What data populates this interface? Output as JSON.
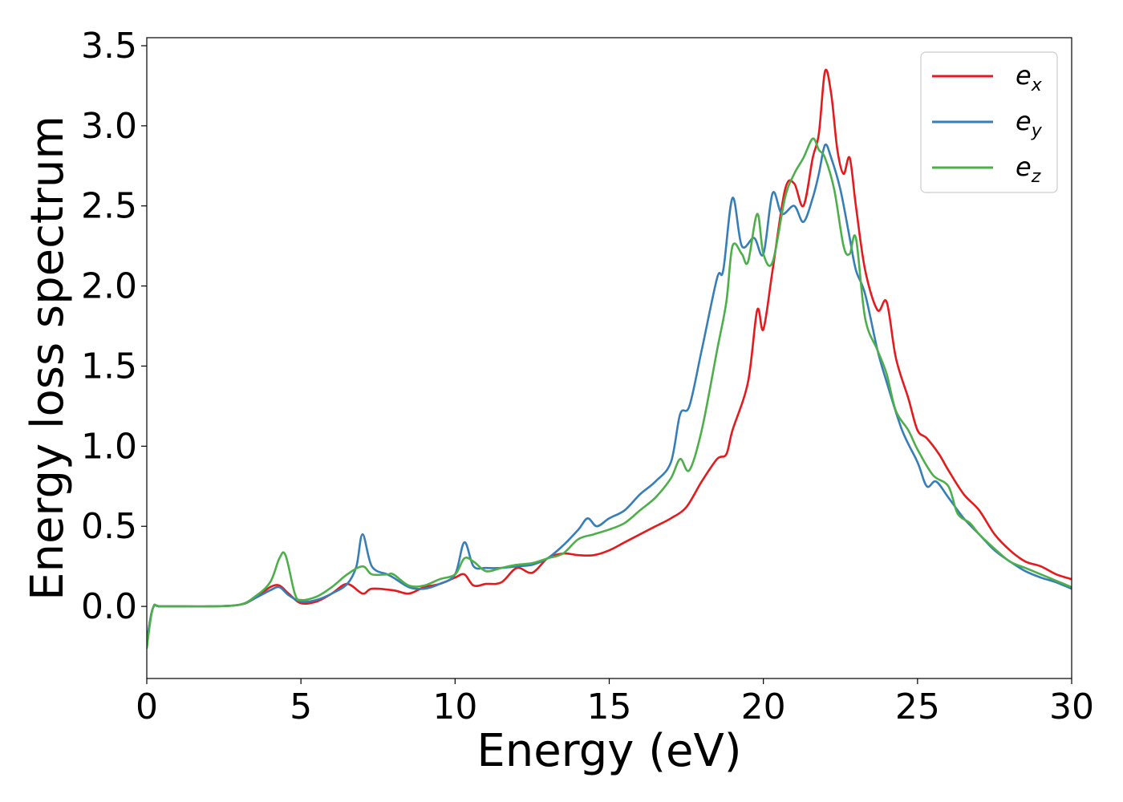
{
  "chart_data": {
    "type": "line",
    "title": "",
    "xlabel": "Energy (eV)",
    "ylabel": "Energy loss spectrum",
    "xlim": [
      0,
      30
    ],
    "ylim": [
      -0.45,
      3.55
    ],
    "xticks": [
      0,
      5,
      10,
      15,
      20,
      25,
      30
    ],
    "xtick_labels": [
      "0",
      "5",
      "10",
      "15",
      "20",
      "25",
      "30"
    ],
    "yticks": [
      0.0,
      0.5,
      1.0,
      1.5,
      2.0,
      2.5,
      3.0,
      3.5
    ],
    "ytick_labels": [
      "0.0",
      "0.5",
      "1.0",
      "1.5",
      "2.0",
      "2.5",
      "3.0",
      "3.5"
    ],
    "grid": false,
    "legend_position": "top-right",
    "series": [
      {
        "name": "e",
        "subscript": "x",
        "color": "#e41a1c",
        "points": [
          [
            0,
            -0.22
          ],
          [
            0.2,
            -0.01
          ],
          [
            0.5,
            0.0
          ],
          [
            2,
            0.0
          ],
          [
            3,
            0.01
          ],
          [
            3.5,
            0.05
          ],
          [
            4,
            0.12
          ],
          [
            4.3,
            0.13
          ],
          [
            4.6,
            0.08
          ],
          [
            5,
            0.02
          ],
          [
            5.5,
            0.03
          ],
          [
            6,
            0.08
          ],
          [
            6.5,
            0.14
          ],
          [
            7,
            0.08
          ],
          [
            7.3,
            0.11
          ],
          [
            8,
            0.1
          ],
          [
            8.5,
            0.08
          ],
          [
            9,
            0.12
          ],
          [
            9.5,
            0.14
          ],
          [
            10,
            0.18
          ],
          [
            10.3,
            0.2
          ],
          [
            10.6,
            0.13
          ],
          [
            11,
            0.14
          ],
          [
            11.5,
            0.15
          ],
          [
            12,
            0.24
          ],
          [
            12.5,
            0.21
          ],
          [
            13,
            0.3
          ],
          [
            13.5,
            0.33
          ],
          [
            14,
            0.32
          ],
          [
            14.5,
            0.32
          ],
          [
            15,
            0.35
          ],
          [
            15.5,
            0.4
          ],
          [
            16,
            0.45
          ],
          [
            16.5,
            0.5
          ],
          [
            17,
            0.55
          ],
          [
            17.5,
            0.62
          ],
          [
            18,
            0.78
          ],
          [
            18.5,
            0.92
          ],
          [
            18.8,
            0.95
          ],
          [
            19,
            1.1
          ],
          [
            19.5,
            1.4
          ],
          [
            19.8,
            1.85
          ],
          [
            20,
            1.73
          ],
          [
            20.3,
            2.1
          ],
          [
            20.7,
            2.6
          ],
          [
            21,
            2.64
          ],
          [
            21.3,
            2.5
          ],
          [
            21.6,
            2.8
          ],
          [
            21.8,
            2.95
          ],
          [
            22,
            3.34
          ],
          [
            22.2,
            3.2
          ],
          [
            22.4,
            2.85
          ],
          [
            22.6,
            2.7
          ],
          [
            22.8,
            2.8
          ],
          [
            23,
            2.5
          ],
          [
            23.3,
            2.1
          ],
          [
            23.7,
            1.85
          ],
          [
            24,
            1.9
          ],
          [
            24.3,
            1.55
          ],
          [
            24.7,
            1.3
          ],
          [
            25,
            1.1
          ],
          [
            25.3,
            1.05
          ],
          [
            25.7,
            0.95
          ],
          [
            26,
            0.85
          ],
          [
            26.5,
            0.7
          ],
          [
            27,
            0.6
          ],
          [
            27.5,
            0.45
          ],
          [
            28,
            0.35
          ],
          [
            28.5,
            0.28
          ],
          [
            29,
            0.25
          ],
          [
            29.5,
            0.2
          ],
          [
            30,
            0.17
          ]
        ]
      },
      {
        "name": "e",
        "subscript": "y",
        "color": "#377eb8",
        "points": [
          [
            0,
            -0.22
          ],
          [
            0.2,
            -0.01
          ],
          [
            0.5,
            0.0
          ],
          [
            2,
            0.0
          ],
          [
            3,
            0.01
          ],
          [
            3.5,
            0.05
          ],
          [
            4,
            0.1
          ],
          [
            4.3,
            0.12
          ],
          [
            4.6,
            0.07
          ],
          [
            5,
            0.03
          ],
          [
            5.5,
            0.04
          ],
          [
            6,
            0.08
          ],
          [
            6.5,
            0.14
          ],
          [
            6.8,
            0.25
          ],
          [
            7,
            0.45
          ],
          [
            7.3,
            0.25
          ],
          [
            7.8,
            0.2
          ],
          [
            8,
            0.18
          ],
          [
            8.5,
            0.12
          ],
          [
            9,
            0.11
          ],
          [
            9.5,
            0.14
          ],
          [
            10,
            0.2
          ],
          [
            10.3,
            0.4
          ],
          [
            10.6,
            0.25
          ],
          [
            11,
            0.24
          ],
          [
            11.5,
            0.24
          ],
          [
            12,
            0.25
          ],
          [
            12.5,
            0.26
          ],
          [
            13,
            0.3
          ],
          [
            13.5,
            0.38
          ],
          [
            14,
            0.48
          ],
          [
            14.3,
            0.55
          ],
          [
            14.6,
            0.5
          ],
          [
            15,
            0.55
          ],
          [
            15.5,
            0.6
          ],
          [
            16,
            0.7
          ],
          [
            16.5,
            0.78
          ],
          [
            17,
            0.9
          ],
          [
            17.3,
            1.2
          ],
          [
            17.6,
            1.25
          ],
          [
            18,
            1.6
          ],
          [
            18.5,
            2.05
          ],
          [
            18.7,
            2.1
          ],
          [
            19,
            2.55
          ],
          [
            19.3,
            2.25
          ],
          [
            19.7,
            2.3
          ],
          [
            20,
            2.2
          ],
          [
            20.3,
            2.58
          ],
          [
            20.6,
            2.45
          ],
          [
            21,
            2.5
          ],
          [
            21.3,
            2.4
          ],
          [
            21.6,
            2.55
          ],
          [
            21.8,
            2.7
          ],
          [
            22,
            2.88
          ],
          [
            22.2,
            2.8
          ],
          [
            22.5,
            2.6
          ],
          [
            22.8,
            2.3
          ],
          [
            23,
            2.1
          ],
          [
            23.3,
            1.95
          ],
          [
            23.7,
            1.6
          ],
          [
            24,
            1.4
          ],
          [
            24.5,
            1.1
          ],
          [
            25,
            0.9
          ],
          [
            25.3,
            0.75
          ],
          [
            25.6,
            0.78
          ],
          [
            26,
            0.68
          ],
          [
            26.5,
            0.55
          ],
          [
            27,
            0.45
          ],
          [
            27.5,
            0.35
          ],
          [
            28,
            0.28
          ],
          [
            28.5,
            0.22
          ],
          [
            29,
            0.18
          ],
          [
            29.5,
            0.15
          ],
          [
            30,
            0.11
          ]
        ]
      },
      {
        "name": "e",
        "subscript": "z",
        "color": "#4daf4a",
        "points": [
          [
            0,
            -0.26
          ],
          [
            0.2,
            -0.01
          ],
          [
            0.5,
            0.0
          ],
          [
            2,
            0.0
          ],
          [
            3,
            0.01
          ],
          [
            3.5,
            0.06
          ],
          [
            4,
            0.15
          ],
          [
            4.3,
            0.3
          ],
          [
            4.5,
            0.32
          ],
          [
            4.8,
            0.08
          ],
          [
            5,
            0.04
          ],
          [
            5.5,
            0.06
          ],
          [
            6,
            0.12
          ],
          [
            6.5,
            0.2
          ],
          [
            7,
            0.25
          ],
          [
            7.3,
            0.2
          ],
          [
            7.8,
            0.2
          ],
          [
            8,
            0.2
          ],
          [
            8.5,
            0.13
          ],
          [
            9,
            0.13
          ],
          [
            9.5,
            0.17
          ],
          [
            10,
            0.2
          ],
          [
            10.3,
            0.3
          ],
          [
            10.6,
            0.28
          ],
          [
            11,
            0.22
          ],
          [
            11.5,
            0.24
          ],
          [
            12,
            0.26
          ],
          [
            12.5,
            0.27
          ],
          [
            13,
            0.3
          ],
          [
            13.5,
            0.33
          ],
          [
            14,
            0.42
          ],
          [
            14.5,
            0.45
          ],
          [
            15,
            0.48
          ],
          [
            15.5,
            0.52
          ],
          [
            16,
            0.6
          ],
          [
            16.5,
            0.68
          ],
          [
            17,
            0.8
          ],
          [
            17.3,
            0.92
          ],
          [
            17.6,
            0.85
          ],
          [
            18,
            1.1
          ],
          [
            18.5,
            1.6
          ],
          [
            18.8,
            1.9
          ],
          [
            19,
            2.25
          ],
          [
            19.3,
            2.2
          ],
          [
            19.5,
            2.15
          ],
          [
            19.8,
            2.45
          ],
          [
            20,
            2.2
          ],
          [
            20.3,
            2.15
          ],
          [
            20.7,
            2.55
          ],
          [
            21,
            2.7
          ],
          [
            21.3,
            2.8
          ],
          [
            21.6,
            2.92
          ],
          [
            21.8,
            2.85
          ],
          [
            22,
            2.8
          ],
          [
            22.3,
            2.6
          ],
          [
            22.6,
            2.25
          ],
          [
            22.8,
            2.2
          ],
          [
            23,
            2.3
          ],
          [
            23.3,
            1.8
          ],
          [
            23.7,
            1.6
          ],
          [
            24,
            1.45
          ],
          [
            24.3,
            1.22
          ],
          [
            24.7,
            1.1
          ],
          [
            25,
            0.98
          ],
          [
            25.5,
            0.82
          ],
          [
            26,
            0.75
          ],
          [
            26.3,
            0.58
          ],
          [
            26.7,
            0.52
          ],
          [
            27,
            0.45
          ],
          [
            27.5,
            0.36
          ],
          [
            28,
            0.28
          ],
          [
            28.5,
            0.24
          ],
          [
            29,
            0.2
          ],
          [
            29.5,
            0.16
          ],
          [
            30,
            0.12
          ]
        ]
      }
    ]
  }
}
